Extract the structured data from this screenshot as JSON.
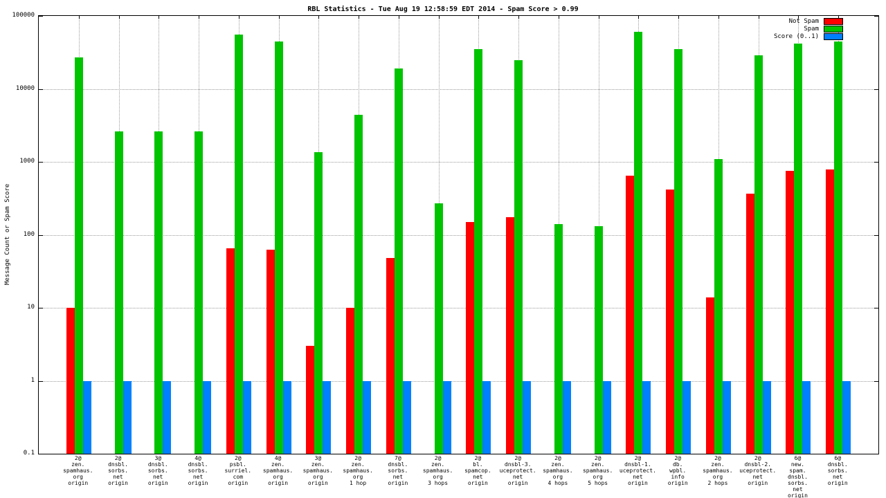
{
  "chart_data": {
    "type": "bar",
    "title": "RBL Statistics - Tue Aug 19 12:58:59 EDT 2014 - Spam Score > 0.99",
    "ylabel": "Message Count or Spam Score",
    "yscale": "log",
    "ylim": [
      0.1,
      100000
    ],
    "ytick_labels": [
      "0.1",
      "1",
      "10",
      "100",
      "1000",
      "10000",
      "100000"
    ],
    "grid": true,
    "legend_position": "top-right",
    "categories": [
      [
        "2@",
        "zen.",
        "spamhaus.",
        "org",
        "origin"
      ],
      [
        "2@",
        "dnsbl.",
        "sorbs.",
        "net",
        "origin"
      ],
      [
        "3@",
        "dnsbl.",
        "sorbs.",
        "net",
        "origin"
      ],
      [
        "4@",
        "dnsbl.",
        "sorbs.",
        "net",
        "origin"
      ],
      [
        "2@",
        "psbl.",
        "surriel.",
        "com",
        "origin"
      ],
      [
        "4@",
        "zen.",
        "spamhaus.",
        "org",
        "origin"
      ],
      [
        "3@",
        "zen.",
        "spamhaus.",
        "org",
        "origin"
      ],
      [
        "2@",
        "zen.",
        "spamhaus.",
        "org",
        "1 hop"
      ],
      [
        "7@",
        "dnsbl.",
        "sorbs.",
        "net",
        "origin"
      ],
      [
        "2@",
        "zen.",
        "spamhaus.",
        "org",
        "3 hops"
      ],
      [
        "2@",
        "bl.",
        "spamcop.",
        "net",
        "origin"
      ],
      [
        "2@",
        "dnsbl-3.",
        "uceprotect.",
        "net",
        "origin"
      ],
      [
        "2@",
        "zen.",
        "spamhaus.",
        "org",
        "4 hops"
      ],
      [
        "2@",
        "zen.",
        "spamhaus.",
        "org",
        "5 hops"
      ],
      [
        "2@",
        "dnsbl-1.",
        "uceprotect.",
        "net",
        "origin"
      ],
      [
        "2@",
        "db.",
        "wpbl.",
        "info",
        "origin"
      ],
      [
        "2@",
        "zen.",
        "spamhaus.",
        "org",
        "2 hops"
      ],
      [
        "2@",
        "dnsbl-2.",
        "uceprotect.",
        "net",
        "origin"
      ],
      [
        "6@",
        "new.",
        "spam.",
        "dnsbl.",
        "sorbs.",
        "net",
        "origin"
      ],
      [
        "6@",
        "dnsbl.",
        "sorbs.",
        "net",
        "origin"
      ]
    ],
    "series": [
      {
        "name": "Not Spam",
        "color": "#ff0000",
        "values": [
          10,
          0,
          0,
          0,
          65,
          63,
          3,
          10,
          48,
          0,
          150,
          175,
          0,
          0,
          650,
          420,
          14,
          370,
          750,
          780
        ]
      },
      {
        "name": "Spam",
        "color": "#00c400",
        "values": [
          27000,
          2600,
          2600,
          2600,
          55000,
          45000,
          1350,
          4400,
          19000,
          270,
          35000,
          25000,
          140,
          130,
          60000,
          35000,
          1100,
          29000,
          42000,
          45000
        ]
      },
      {
        "name": "Score (0..1)",
        "color": "#0080ff",
        "values": [
          1,
          1,
          1,
          1,
          1,
          1,
          1,
          1,
          1,
          1,
          1,
          1,
          1,
          1,
          1,
          1,
          1,
          1,
          1,
          1
        ]
      }
    ]
  }
}
